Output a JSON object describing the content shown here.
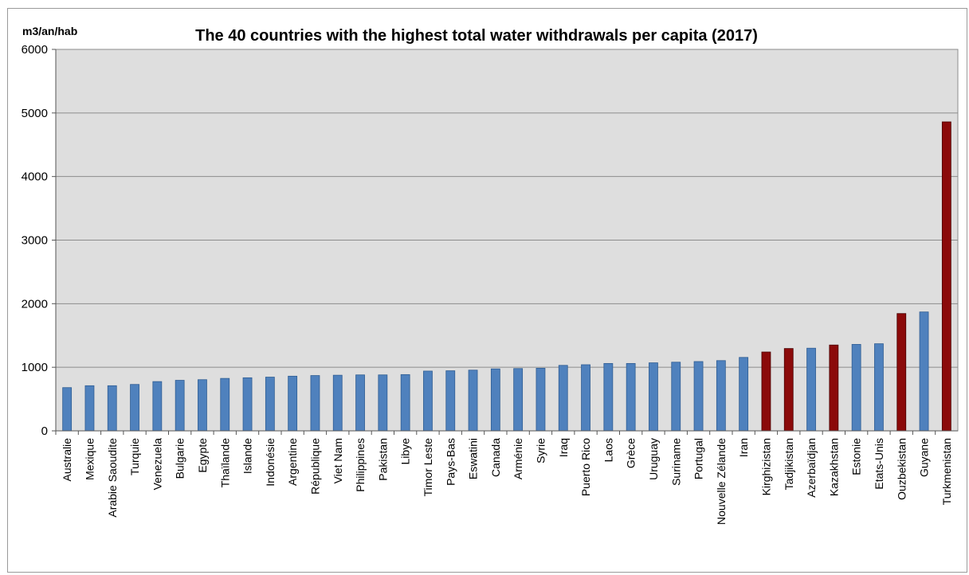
{
  "chart_data": {
    "type": "bar",
    "title": "The 40 countries with the highest total water withdrawals per capita (2017)",
    "ylabel": "m3/an/hab",
    "xlabel": "",
    "ylim": [
      0,
      6000
    ],
    "yticks": [
      0,
      1000,
      2000,
      3000,
      4000,
      5000,
      6000
    ],
    "grid": true,
    "legend": "none",
    "colors": {
      "default": "#4f81bd",
      "highlight": "#8b0a0a",
      "plot_background": "#dedede",
      "gridline": "#8c8c8c"
    },
    "categories": [
      "Australie",
      "Mexique",
      "Arabie Saoudite",
      "Turquie",
      "Venezuela",
      "Bulgarie",
      "Egypte",
      "Thaïlande",
      "Islande",
      "Indonésie",
      "Argentine",
      "République",
      "Viet Nam",
      "Philippines",
      "Pakistan",
      "Libye",
      "Timor Leste",
      "Pays-Bas",
      "Eswatini",
      "Canada",
      "Arménie",
      "Syrie",
      "Iraq",
      "Puerto Rico",
      "Laos",
      "Grèce",
      "Uruguay",
      "Suriname",
      "Portugal",
      "Nouvelle Zélande",
      "Iran",
      "Kirghizistan",
      "Tadjikistan",
      "Azerbaïdjan",
      "Kazakhstan",
      "Estonie",
      "Etats-Unis",
      "Ouzbekistan",
      "Guyane",
      "Turkmenistan"
    ],
    "values": [
      680,
      710,
      710,
      730,
      775,
      795,
      805,
      825,
      835,
      845,
      860,
      870,
      875,
      880,
      880,
      885,
      940,
      945,
      955,
      975,
      980,
      985,
      1030,
      1040,
      1060,
      1060,
      1070,
      1080,
      1090,
      1105,
      1155,
      1240,
      1295,
      1300,
      1350,
      1360,
      1370,
      1845,
      1870,
      4860
    ],
    "highlighted": [
      "Kirghizistan",
      "Tadjikistan",
      "Kazakhstan",
      "Ouzbekistan",
      "Turkmenistan"
    ]
  }
}
